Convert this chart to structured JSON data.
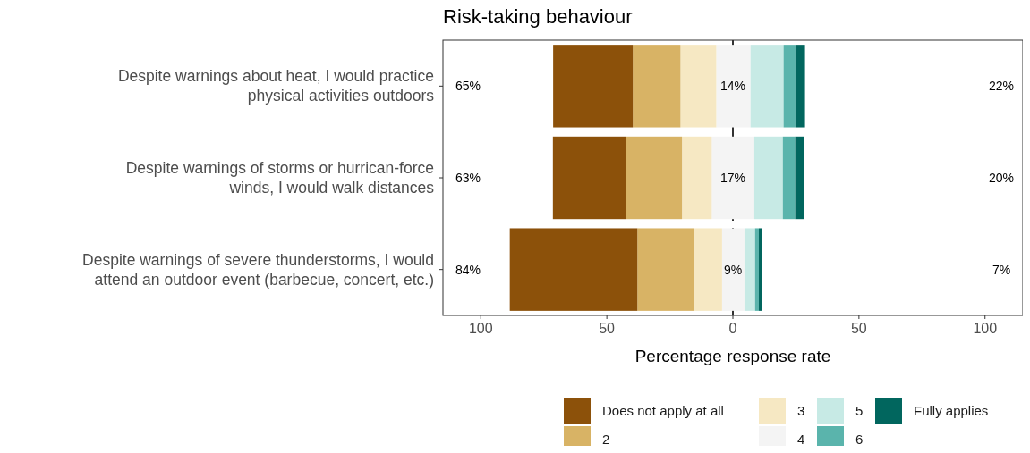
{
  "chart_data": {
    "type": "bar",
    "orientation": "horizontal",
    "stacked": true,
    "title": "Risk-taking behaviour",
    "xlabel": "Percentage response rate",
    "categories": [
      "Despite warnings about heat, I would practice\nphysical activities outdoors",
      "Despite warnings of storms or hurrican-force\nwinds, I would walk distances",
      "Despite warnings of severe thunderstorms, I would\nattend an outdoor event (barbecue, concert, etc.)"
    ],
    "series": [
      {
        "name": "4",
        "color": "#f4f4f4",
        "values": [
          -6.6,
          -8.4,
          -4.3
        ]
      },
      {
        "name": "3",
        "color": "#f6e8c3",
        "values": [
          -14.2,
          -11.8,
          -11.1
        ]
      },
      {
        "name": "2",
        "color": "#d8b365",
        "values": [
          -18.9,
          -22.3,
          -22.5
        ]
      },
      {
        "name": "Does not apply at all",
        "color": "#8c510a",
        "values": [
          -31.6,
          -28.9,
          -50.6
        ]
      },
      {
        "color": "#f4f4f4",
        "values": [
          7.0,
          8.5,
          4.6
        ]
      },
      {
        "name": "5",
        "color": "#c7eae5",
        "values": [
          13.1,
          11.3,
          4.2
        ]
      },
      {
        "name": "6",
        "color": "#5ab4ac",
        "values": [
          4.7,
          4.9,
          1.5
        ]
      },
      {
        "name": "Fully applies",
        "color": "#01665e",
        "values": [
          3.8,
          3.6,
          1.1
        ]
      }
    ],
    "xlim": [
      -115,
      115
    ],
    "xticks": [
      {
        "value": -100,
        "label": "100"
      },
      {
        "value": -50,
        "label": "50"
      },
      0,
      50,
      100
    ],
    "ref_lines": [
      {
        "axis": "x",
        "value": 0,
        "color": "#000000",
        "line_style": "dashed"
      }
    ],
    "annotations": [
      "65%",
      "63%",
      "84%",
      "14%",
      "17%",
      "9%",
      "22%",
      "20%",
      "7%"
    ],
    "grid": false,
    "legend": "bottom"
  }
}
